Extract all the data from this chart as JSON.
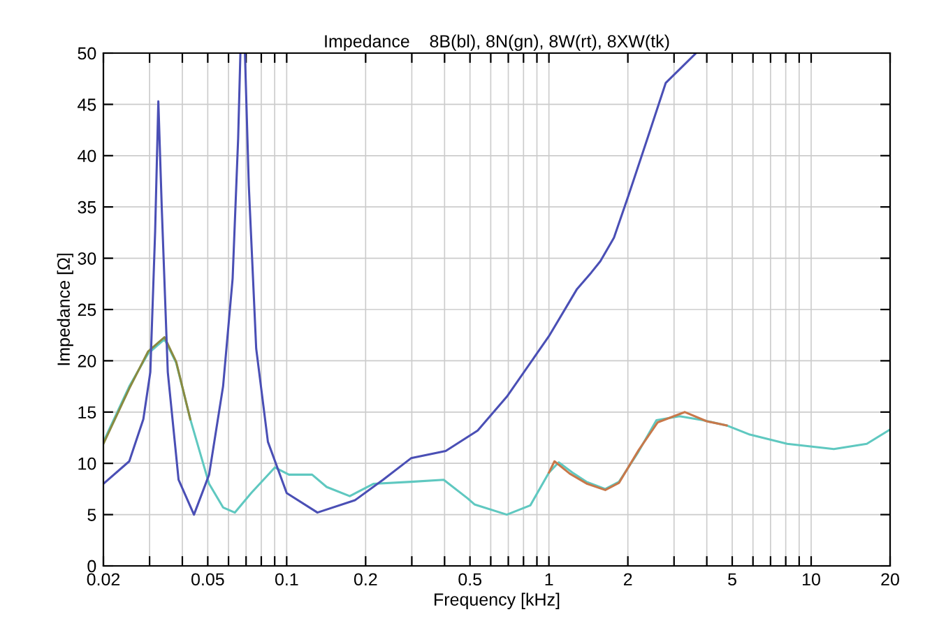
{
  "chart_data": {
    "type": "line",
    "title": "Impedance    8B(bl), 8N(gn), 8W(rt), 8XW(tk)",
    "xlabel": "Frequency [kHz]",
    "ylabel": "Impedance [Ω]",
    "log": "x",
    "grid": true,
    "xlim": [
      0.02,
      20
    ],
    "ylim": [
      0,
      50
    ],
    "xticks": [
      0.02,
      {
        "value": 0.03,
        "label": null
      },
      {
        "value": 0.04,
        "label": null
      },
      0.05,
      {
        "value": 0.06,
        "label": null
      },
      {
        "value": 0.07,
        "label": null
      },
      {
        "value": 0.08,
        "label": null
      },
      {
        "value": 0.09,
        "label": null
      },
      0.1,
      0.2,
      {
        "value": 0.3,
        "label": null
      },
      {
        "value": 0.4,
        "label": null
      },
      0.5,
      {
        "value": 0.6,
        "label": null
      },
      {
        "value": 0.7,
        "label": null
      },
      {
        "value": 0.8,
        "label": null
      },
      {
        "value": 0.9,
        "label": null
      },
      1,
      2,
      {
        "value": 3,
        "label": null
      },
      {
        "value": 4,
        "label": null
      },
      5,
      {
        "value": 6,
        "label": null
      },
      {
        "value": 7,
        "label": null
      },
      {
        "value": 8,
        "label": null
      },
      {
        "value": 9,
        "label": null
      },
      10,
      20
    ],
    "yticks": [
      0,
      5,
      10,
      15,
      20,
      25,
      30,
      35,
      40,
      45,
      50
    ],
    "series": [
      {
        "color": "#5fc8c0",
        "x": [
          0.02,
          0.0251,
          0.0296,
          0.0342,
          0.0379,
          0.0429,
          0.0506,
          0.0572,
          0.0634,
          0.0732,
          0.0902,
          0.102,
          0.125,
          0.142,
          0.174,
          0.214,
          0.298,
          0.397,
          0.489,
          0.52,
          0.691,
          0.849,
          1.0,
          1.09,
          1.23,
          1.39,
          1.64,
          1.85,
          2.18,
          2.57,
          3.15,
          3.87,
          4.76,
          5.84,
          8.1,
          12.2,
          16.3,
          20
        ],
        "values": [
          12.1,
          17.5,
          20.7,
          22.1,
          19.8,
          14.3,
          8.0,
          5.7,
          5.2,
          7.1,
          9.6,
          8.9,
          8.9,
          7.7,
          6.8,
          8.0,
          8.2,
          8.4,
          6.6,
          6.0,
          5.0,
          5.9,
          9.1,
          10.1,
          9.1,
          8.2,
          7.5,
          8.2,
          11.0,
          14.2,
          14.6,
          14.2,
          13.7,
          12.8,
          11.9,
          11.4,
          11.9,
          13.3
        ]
      },
      {
        "color": "#8a8a40",
        "x": [
          0.02,
          0.0251,
          0.0296,
          0.0342,
          0.0379,
          0.0429
        ],
        "values": [
          11.9,
          17.3,
          20.9,
          22.3,
          19.9,
          14.3
        ]
      },
      {
        "color": "#c8784a",
        "x": [
          1.0,
          1.05,
          1.2,
          1.4,
          1.64,
          1.85,
          2.2,
          2.6,
          3.3,
          4.0,
          4.76
        ],
        "values": [
          9.1,
          10.2,
          9.0,
          8.0,
          7.4,
          8.1,
          11.3,
          14.0,
          15.0,
          14.1,
          13.7
        ]
      },
      {
        "color": "#4a4fb5",
        "x": [
          0.02,
          0.0251,
          0.0284,
          0.0302,
          0.0315,
          0.0324,
          0.0334,
          0.0352,
          0.0387,
          0.0443,
          0.0506,
          0.0572,
          0.0622,
          0.0653,
          0.0666,
          0.068,
          0.0693,
          0.0717,
          0.0765,
          0.0848,
          0.1,
          0.131,
          0.182,
          0.233,
          0.298,
          0.404,
          0.535,
          0.691,
          1.0,
          1.28,
          1.45,
          1.57,
          1.77,
          2.01,
          2.37,
          2.79,
          3.64
        ],
        "values": [
          8.0,
          10.2,
          14.3,
          18.9,
          32.6,
          45.3,
          34.8,
          18.9,
          8.4,
          5.0,
          8.9,
          17.5,
          28.0,
          41.7,
          50,
          null,
          50,
          37.1,
          21.2,
          12.1,
          7.1,
          5.2,
          6.4,
          8.4,
          10.5,
          11.2,
          13.2,
          16.5,
          22.4,
          27.0,
          28.6,
          29.7,
          32.0,
          36.1,
          41.6,
          47.1,
          50
        ]
      }
    ]
  }
}
